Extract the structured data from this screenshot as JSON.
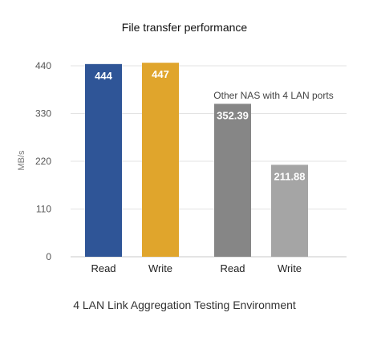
{
  "chart_data": {
    "type": "bar",
    "title": "File transfer performance",
    "caption": "4 LAN Link Aggregation Testing Environment",
    "ylabel": "MB/s",
    "xlabel": "",
    "ylim": [
      0,
      440
    ],
    "yticks": [
      0,
      110,
      220,
      330,
      440
    ],
    "grid": true,
    "annotation": "Other NAS with 4 LAN ports",
    "categories": [
      "Read",
      "Write",
      "Read",
      "Write"
    ],
    "values": [
      444,
      447,
      352.39,
      211.88
    ],
    "colors": [
      "#2f5597",
      "#e0a52c",
      "#868686",
      "#a5a5a5"
    ]
  }
}
